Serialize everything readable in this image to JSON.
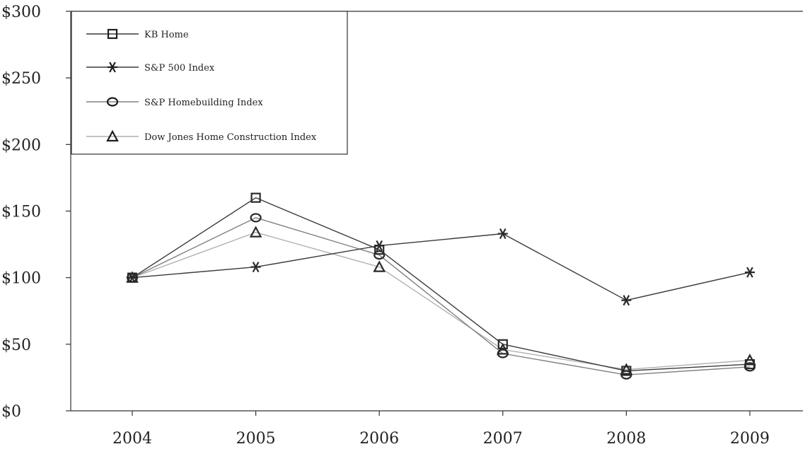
{
  "chart_data": {
    "type": "line",
    "title": "",
    "xlabel": "",
    "ylabel": "",
    "categories": [
      "2004",
      "2005",
      "2006",
      "2007",
      "2008",
      "2009"
    ],
    "y_ticks": [
      "$0",
      "$50",
      "$100",
      "$150",
      "$200",
      "$250",
      "$300"
    ],
    "y_tick_values": [
      0,
      50,
      100,
      150,
      200,
      250,
      300
    ],
    "ylim": [
      0,
      300
    ],
    "grid": false,
    "legend_position": "top-left",
    "series": [
      {
        "name": "KB Home",
        "marker": "square",
        "color": "#3a3a3a",
        "values": [
          100,
          160,
          121,
          50,
          30,
          35
        ]
      },
      {
        "name": "S&P 500 Index",
        "marker": "asterisk",
        "color": "#3a3a3a",
        "values": [
          100,
          108,
          124,
          133,
          83,
          104
        ]
      },
      {
        "name": "S&P Homebuilding Index",
        "marker": "circle",
        "color": "#808080",
        "values": [
          100,
          145,
          117,
          43,
          27,
          33
        ]
      },
      {
        "name": "Dow Jones Home Construction Index",
        "marker": "triangle",
        "color": "#b0b0b0",
        "values": [
          100,
          134,
          108,
          46,
          31,
          38
        ]
      }
    ]
  }
}
